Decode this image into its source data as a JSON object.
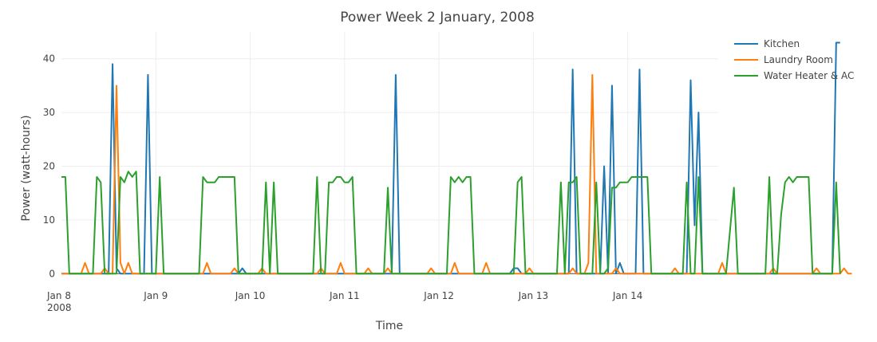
{
  "chart_data": {
    "type": "line",
    "title": "Power Week 2 January, 2008",
    "xlabel": "Time",
    "ylabel": "Power (watt-hours)",
    "xlim": [
      "2008-01-08 00:00",
      "2008-01-14 23:00"
    ],
    "ylim": [
      -1,
      45
    ],
    "x_start": "2008-01-08 00:00",
    "x_step": "1 hour",
    "x_ticks": [
      {
        "t": "2008-01-08 00:00",
        "label": "Jan 8",
        "sub": "2008"
      },
      {
        "t": "2008-01-09 00:00",
        "label": "Jan 9",
        "sub": ""
      },
      {
        "t": "2008-01-10 00:00",
        "label": "Jan 10",
        "sub": ""
      },
      {
        "t": "2008-01-11 00:00",
        "label": "Jan 11",
        "sub": ""
      },
      {
        "t": "2008-01-12 00:00",
        "label": "Jan 12",
        "sub": ""
      },
      {
        "t": "2008-01-13 00:00",
        "label": "Jan 13",
        "sub": ""
      },
      {
        "t": "2008-01-14 00:00",
        "label": "Jan 14",
        "sub": ""
      }
    ],
    "y_ticks": [
      0,
      10,
      20,
      30,
      40
    ],
    "legend_position": "top-right",
    "grid": true,
    "series": [
      {
        "name": "Kitchen",
        "color": "#1f77b4",
        "values": [
          0,
          0,
          0,
          0,
          0,
          0,
          0,
          0,
          0,
          0,
          0,
          0,
          0,
          39,
          1,
          0,
          0,
          0,
          0,
          0,
          0,
          0,
          37,
          0,
          0,
          0,
          0,
          0,
          0,
          0,
          0,
          0,
          0,
          0,
          0,
          0,
          0,
          0,
          0,
          0,
          0,
          0,
          0,
          0,
          0,
          0,
          1,
          0,
          0,
          0,
          0,
          0,
          0,
          0,
          0,
          0,
          0,
          0,
          0,
          0,
          0,
          0,
          0,
          0,
          0,
          0,
          0,
          0,
          0,
          0,
          0,
          0,
          0,
          0,
          0,
          0,
          0,
          0,
          0,
          0,
          0,
          0,
          0,
          0,
          0,
          37,
          0,
          0,
          0,
          0,
          0,
          0,
          0,
          0,
          0,
          0,
          0,
          0,
          0,
          0,
          0,
          0,
          0,
          0,
          0,
          0,
          0,
          0,
          0,
          0,
          0,
          0,
          0,
          0,
          0,
          1,
          1,
          0,
          0,
          0,
          0,
          0,
          0,
          0,
          0,
          0,
          0,
          0,
          0,
          0,
          38,
          0,
          0,
          0,
          0,
          0,
          0,
          0,
          20,
          0,
          35,
          0,
          2,
          0,
          0,
          0,
          0,
          38,
          0,
          0,
          0,
          0,
          0,
          0,
          0,
          0,
          0,
          0,
          0,
          0,
          36,
          9,
          30,
          0,
          0,
          0,
          0,
          0,
          0,
          0,
          0,
          0,
          0,
          0,
          0,
          0,
          0,
          0,
          0,
          0,
          0,
          0,
          0,
          0,
          0,
          0,
          0,
          0,
          0,
          0,
          0,
          0,
          0,
          0,
          0,
          0,
          0,
          43,
          43
        ]
      },
      {
        "name": "Laundry Room",
        "color": "#ff7f0e",
        "values": [
          0,
          0,
          0,
          0,
          0,
          0,
          2,
          0,
          0,
          0,
          0,
          1,
          0,
          0,
          35,
          2,
          0,
          2,
          0,
          0,
          0,
          0,
          0,
          0,
          0,
          0,
          0,
          0,
          0,
          0,
          0,
          0,
          0,
          0,
          0,
          0,
          0,
          2,
          0,
          0,
          0,
          0,
          0,
          0,
          1,
          0,
          0,
          0,
          0,
          0,
          0,
          1,
          0,
          0,
          0,
          0,
          0,
          0,
          0,
          0,
          0,
          0,
          0,
          0,
          0,
          0,
          1,
          0,
          0,
          0,
          0,
          2,
          0,
          0,
          0,
          0,
          0,
          0,
          1,
          0,
          0,
          0,
          0,
          1,
          0,
          0,
          0,
          0,
          0,
          0,
          0,
          0,
          0,
          0,
          1,
          0,
          0,
          0,
          0,
          0,
          2,
          0,
          0,
          0,
          0,
          0,
          0,
          0,
          2,
          0,
          0,
          0,
          0,
          0,
          0,
          0,
          0,
          0,
          0,
          1,
          0,
          0,
          0,
          0,
          0,
          0,
          0,
          0,
          0,
          0,
          1,
          0,
          0,
          0,
          2,
          37,
          0,
          0,
          0,
          0,
          0,
          1,
          0,
          0,
          0,
          0,
          0,
          0,
          0,
          0,
          0,
          0,
          0,
          0,
          0,
          0,
          1,
          0,
          0,
          0,
          0,
          0,
          0,
          0,
          0,
          0,
          0,
          0,
          2,
          0,
          0,
          0,
          0,
          0,
          0,
          0,
          0,
          0,
          0,
          0,
          0,
          1,
          0,
          0,
          0,
          0,
          0,
          0,
          0,
          0,
          0,
          0,
          1,
          0,
          0,
          0,
          0,
          0,
          0,
          1,
          0,
          0
        ]
      },
      {
        "name": "Water Heater & AC",
        "color": "#2ca02c",
        "values": [
          18,
          18,
          0,
          0,
          0,
          0,
          0,
          0,
          0,
          18,
          17,
          0,
          0,
          0,
          0,
          18,
          17,
          19,
          18,
          19,
          0,
          0,
          0,
          0,
          0,
          18,
          0,
          0,
          0,
          0,
          0,
          0,
          0,
          0,
          0,
          0,
          18,
          17,
          17,
          17,
          18,
          18,
          18,
          18,
          18,
          0,
          0,
          0,
          0,
          0,
          0,
          0,
          17,
          0,
          17,
          0,
          0,
          0,
          0,
          0,
          0,
          0,
          0,
          0,
          0,
          18,
          0,
          0,
          17,
          17,
          18,
          18,
          17,
          17,
          18,
          0,
          0,
          0,
          0,
          0,
          0,
          0,
          0,
          16,
          0,
          0,
          0,
          0,
          0,
          0,
          0,
          0,
          0,
          0,
          0,
          0,
          0,
          0,
          0,
          18,
          17,
          18,
          17,
          18,
          18,
          0,
          0,
          0,
          0,
          0,
          0,
          0,
          0,
          0,
          0,
          0,
          17,
          18,
          0,
          0,
          0,
          0,
          0,
          0,
          0,
          0,
          0,
          17,
          0,
          17,
          17,
          18,
          0,
          0,
          0,
          0,
          17,
          0,
          0,
          1,
          16,
          16,
          17,
          17,
          17,
          18,
          18,
          18,
          18,
          18,
          0,
          0,
          0,
          0,
          0,
          0,
          0,
          0,
          0,
          17,
          0,
          0,
          18,
          0,
          0,
          0,
          0,
          0,
          0,
          0,
          8,
          16,
          0,
          0,
          0,
          0,
          0,
          0,
          0,
          0,
          18,
          0,
          0,
          11,
          17,
          18,
          17,
          18,
          18,
          18,
          18,
          0,
          0,
          0,
          0,
          0,
          0,
          17,
          0
        ]
      }
    ]
  }
}
